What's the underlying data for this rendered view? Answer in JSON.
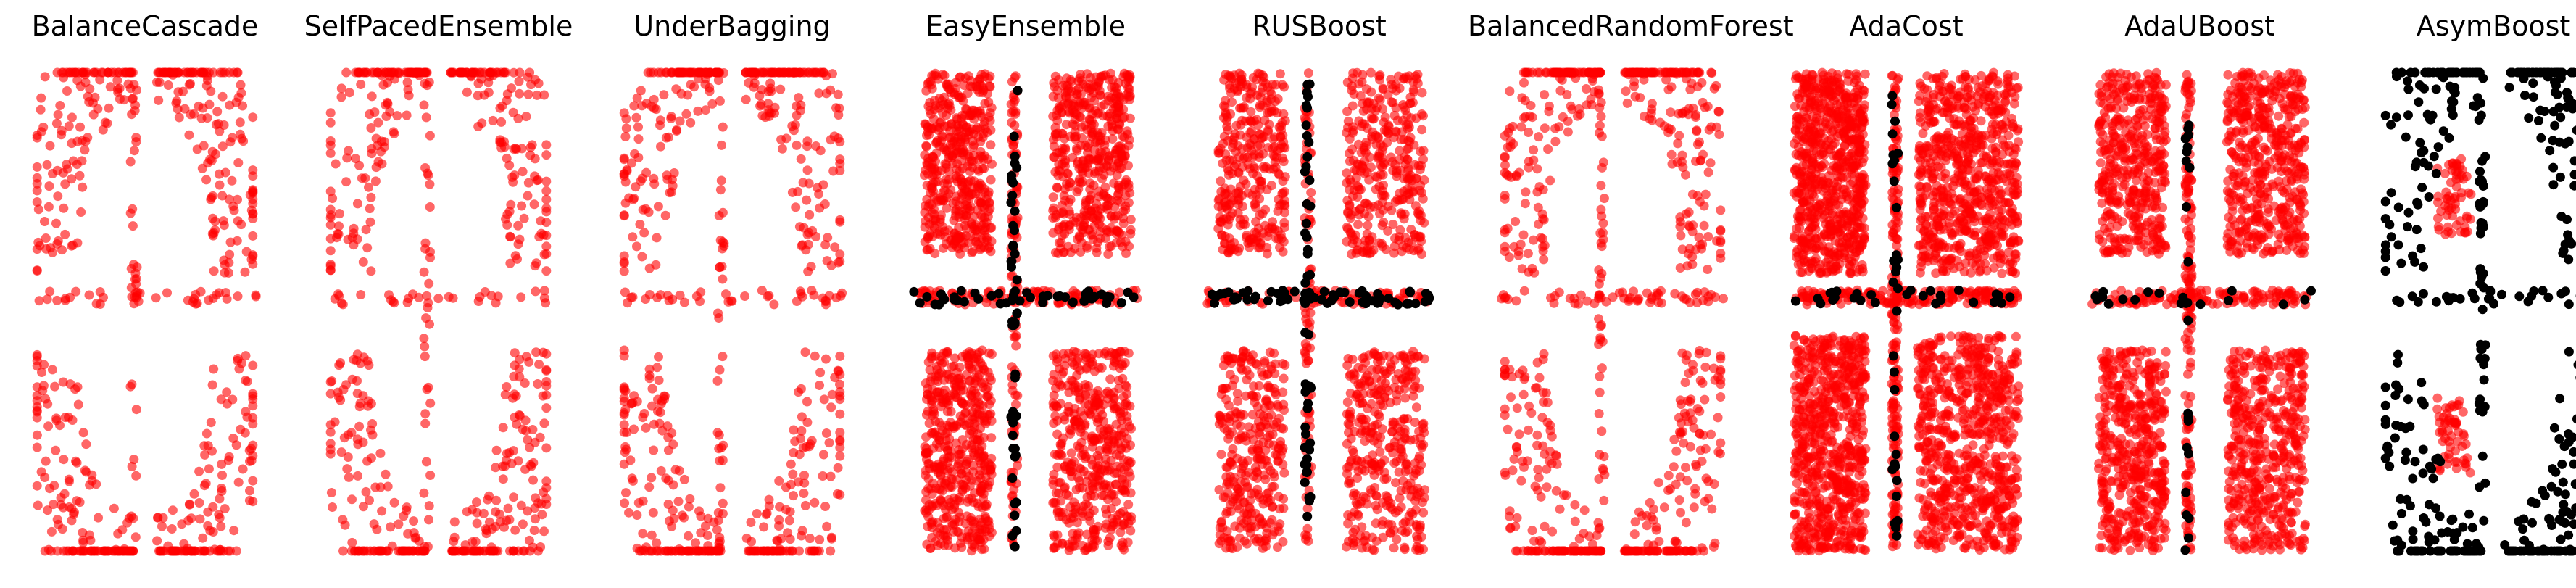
{
  "figure": {
    "colors": {
      "selected": "#ff0000",
      "unselected": "#000000",
      "background": "#ffffff"
    }
  },
  "chart_data": [
    {
      "type": "scatter",
      "title": "BalanceCascade",
      "pattern": "cross",
      "density": 0.25,
      "red_points": 620,
      "black_points": 0,
      "series": [
        {
          "color": "#ff0000"
        }
      ]
    },
    {
      "type": "scatter",
      "title": "SelfPacedEnsemble",
      "pattern": "cross",
      "density": 0.25,
      "red_points": 620,
      "black_points": 0,
      "series": [
        {
          "color": "#ff0000"
        }
      ]
    },
    {
      "type": "scatter",
      "title": "UnderBagging",
      "pattern": "cross",
      "density": 0.27,
      "red_points": 660,
      "black_points": 0,
      "series": [
        {
          "color": "#ff0000"
        }
      ]
    },
    {
      "type": "scatter",
      "title": "EasyEnsemble",
      "pattern": "blocks",
      "density": 0.85,
      "red_points": 2100,
      "black_points": 95,
      "series": [
        {
          "color": "#ff0000"
        },
        {
          "color": "#000000"
        }
      ]
    },
    {
      "type": "scatter",
      "title": "RUSBoost",
      "pattern": "blocks",
      "density": 0.6,
      "red_points": 1500,
      "black_points": 110,
      "series": [
        {
          "color": "#ff0000"
        },
        {
          "color": "#000000"
        }
      ]
    },
    {
      "type": "scatter",
      "title": "BalancedRandomForest",
      "pattern": "cross",
      "density": 0.32,
      "red_points": 760,
      "black_points": 0,
      "series": [
        {
          "color": "#ff0000"
        }
      ]
    },
    {
      "type": "scatter",
      "title": "AdaCost",
      "pattern": "full",
      "density": 0.95,
      "red_points": 3200,
      "black_points": 60,
      "series": [
        {
          "color": "#ff0000"
        },
        {
          "color": "#000000"
        }
      ]
    },
    {
      "type": "scatter",
      "title": "AdaUBoost",
      "pattern": "blocks",
      "density": 0.85,
      "red_points": 2100,
      "black_points": 40,
      "series": [
        {
          "color": "#ff0000"
        },
        {
          "color": "#000000"
        }
      ]
    },
    {
      "type": "scatter",
      "title": "AsymBoost",
      "pattern": "inverse",
      "density": 0.3,
      "red_points": 120,
      "black_points": 520,
      "series": [
        {
          "color": "#ff0000"
        },
        {
          "color": "#000000"
        }
      ]
    }
  ]
}
